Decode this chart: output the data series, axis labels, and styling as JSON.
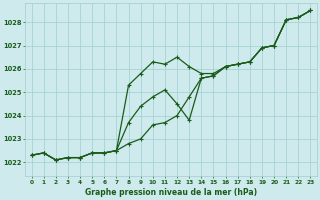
{
  "title": "Graphe pression niveau de la mer (hPa)",
  "background_color": "#ceeaed",
  "grid_color": "#9ecece",
  "line_color": "#1a5c1a",
  "xlim": [
    -0.5,
    23.5
  ],
  "ylim": [
    1021.4,
    1028.8
  ],
  "xticks": [
    0,
    1,
    2,
    3,
    4,
    5,
    6,
    7,
    8,
    9,
    10,
    11,
    12,
    13,
    14,
    15,
    16,
    17,
    18,
    19,
    20,
    21,
    22,
    23
  ],
  "yticks": [
    1022,
    1023,
    1024,
    1025,
    1026,
    1027,
    1028
  ],
  "series1_x": [
    0,
    1,
    2,
    3,
    4,
    5,
    6,
    7,
    8,
    9,
    10,
    11,
    12,
    13,
    14,
    15,
    16,
    17,
    18,
    19,
    20,
    21,
    22,
    23
  ],
  "series1_y": [
    1022.3,
    1022.4,
    1022.1,
    1022.2,
    1022.2,
    1022.4,
    1022.4,
    1022.5,
    1025.3,
    1025.8,
    1026.3,
    1026.2,
    1026.5,
    1026.1,
    1025.8,
    1025.8,
    1026.1,
    1026.2,
    1026.3,
    1026.9,
    1027.0,
    1028.1,
    1028.2,
    1028.5
  ],
  "series2_x": [
    0,
    1,
    2,
    3,
    4,
    5,
    6,
    7,
    8,
    9,
    10,
    11,
    12,
    13,
    14,
    15,
    16,
    17,
    18,
    19,
    20,
    21,
    22,
    23
  ],
  "series2_y": [
    1022.3,
    1022.4,
    1022.1,
    1022.2,
    1022.2,
    1022.4,
    1022.4,
    1022.5,
    1023.7,
    1024.4,
    1024.8,
    1025.1,
    1024.5,
    1023.8,
    1025.6,
    1025.7,
    1026.1,
    1026.2,
    1026.3,
    1026.9,
    1027.0,
    1028.1,
    1028.2,
    1028.5
  ],
  "series3_x": [
    0,
    1,
    2,
    3,
    4,
    5,
    6,
    7,
    8,
    9,
    10,
    11,
    12,
    13,
    14,
    15,
    16,
    17,
    18,
    19,
    20,
    21,
    22,
    23
  ],
  "series3_y": [
    1022.3,
    1022.4,
    1022.1,
    1022.2,
    1022.2,
    1022.4,
    1022.4,
    1022.5,
    1022.8,
    1023.0,
    1023.6,
    1023.7,
    1024.0,
    1024.8,
    1025.6,
    1025.7,
    1026.1,
    1026.2,
    1026.3,
    1026.9,
    1027.0,
    1028.1,
    1028.2,
    1028.5
  ]
}
